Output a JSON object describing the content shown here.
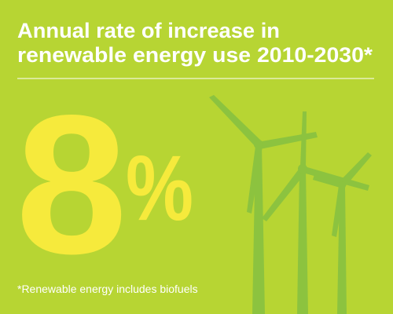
{
  "title": {
    "lines": [
      "Annual rate of increase in",
      "renewable energy use 2010-2030*"
    ]
  },
  "stat": {
    "number": "8",
    "unit": "%"
  },
  "footnote": "*Renewable energy includes biofuels"
}
